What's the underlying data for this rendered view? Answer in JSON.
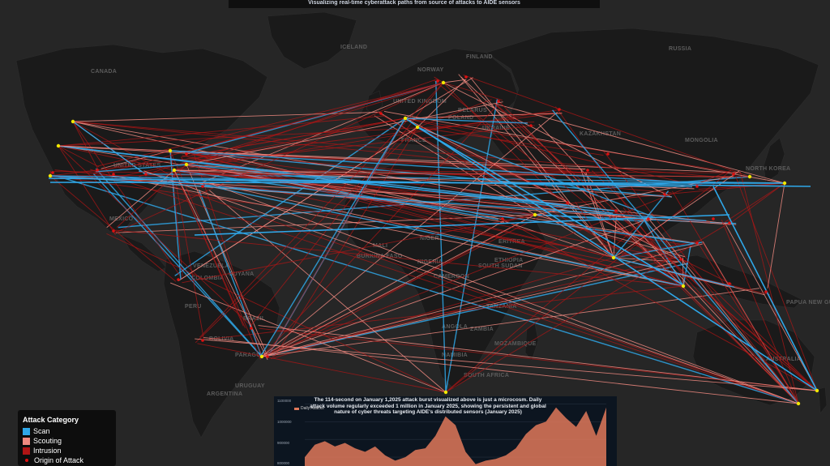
{
  "header": {
    "subtitle": "Visualizing real-time cyberattack paths from source of attacks to AIDE sensors"
  },
  "colors": {
    "scan": "#2fa7e8",
    "scouting": "#f08a80",
    "intrusion": "#b01515",
    "origin": "#e01010",
    "sensor": "#f2e800"
  },
  "map_labels": [
    {
      "name": "ICELAND"
    },
    {
      "name": "RUSSIA"
    },
    {
      "name": "CANADA"
    },
    {
      "name": "FINLAND"
    },
    {
      "name": "NORWAY"
    },
    {
      "name": "UNITED KINGDOM"
    },
    {
      "name": "BELARUS"
    },
    {
      "name": "POLAND"
    },
    {
      "name": "UKRAINE"
    },
    {
      "name": "KAZAKHSTAN"
    },
    {
      "name": "MONGOLIA"
    },
    {
      "name": "FRANCE"
    },
    {
      "name": "UNITED STATES"
    },
    {
      "name": "NORTH KOREA"
    },
    {
      "name": "MEXICO"
    },
    {
      "name": "NIGER"
    },
    {
      "name": "ERITREA"
    },
    {
      "name": "MALI"
    },
    {
      "name": "BURKINA FASO"
    },
    {
      "name": "NIGERIA"
    },
    {
      "name": "ETHIOPIA"
    },
    {
      "name": "SOUTH SUDAN"
    },
    {
      "name": "CAMEROON"
    },
    {
      "name": "VENEZUELA"
    },
    {
      "name": "COLOMBIA"
    },
    {
      "name": "GUYANA"
    },
    {
      "name": "PERU"
    },
    {
      "name": "BRAZIL"
    },
    {
      "name": "BOLIVIA"
    },
    {
      "name": "PARAGUAY"
    },
    {
      "name": "ARGENTINA"
    },
    {
      "name": "URUGUAY"
    },
    {
      "name": "TANZANIA"
    },
    {
      "name": "ANGOLA"
    },
    {
      "name": "ZAMBIA"
    },
    {
      "name": "MOZAMBIQUE"
    },
    {
      "name": "NAMIBIA"
    },
    {
      "name": "SOUTH AFRICA"
    },
    {
      "name": "PAPUA NEW GUINEA"
    },
    {
      "name": "AUSTRALIA"
    }
  ],
  "legend": {
    "title": "Attack Category",
    "items": [
      {
        "label": "Scan",
        "color": "#2fa7e8"
      },
      {
        "label": "Scouting",
        "color": "#f08a80"
      },
      {
        "label": "Intrusion",
        "color": "#b01515"
      },
      {
        "label": "Origin of Attack",
        "color": "#e01010"
      }
    ]
  },
  "inset": {
    "caption": "The 114-second on January 1,2025 attack burst visualized above is just a microcosm. Daily attack volume regularly exceeded 1 million in January 2025, showing the persistent and global nature of cyber threats targeting AIDE's distributed sensors (January 2025)",
    "series_name": "Daily Attacks",
    "y_ticks": [
      "1100000",
      "1000000",
      "900000",
      "800000"
    ],
    "color": "#e0785a"
  },
  "chart_data": {
    "type": "area",
    "title": "",
    "series": [
      {
        "name": "Daily Attacks",
        "x": [
          1,
          2,
          3,
          4,
          5,
          6,
          7,
          8,
          9,
          10,
          11,
          12,
          13,
          14,
          15,
          16,
          17,
          18,
          19,
          20,
          21,
          22,
          23,
          24,
          25,
          26,
          27,
          28,
          29,
          30,
          31
        ],
        "values": [
          800000,
          870000,
          890000,
          860000,
          880000,
          850000,
          830000,
          860000,
          810000,
          780000,
          800000,
          840000,
          850000,
          920000,
          1030000,
          980000,
          830000,
          760000,
          780000,
          790000,
          810000,
          850000,
          930000,
          980000,
          1000000,
          1080000,
          1020000,
          970000,
          1060000,
          920000,
          1080000
        ]
      }
    ],
    "ylim": [
      750000,
      1120000
    ],
    "ylabel": "",
    "xlabel": "",
    "legend": "top-left"
  }
}
